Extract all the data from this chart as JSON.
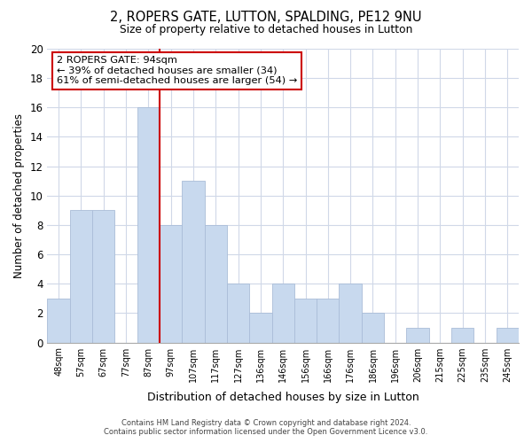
{
  "title": "2, ROPERS GATE, LUTTON, SPALDING, PE12 9NU",
  "subtitle": "Size of property relative to detached houses in Lutton",
  "xlabel": "Distribution of detached houses by size in Lutton",
  "ylabel": "Number of detached properties",
  "bar_labels": [
    "48sqm",
    "57sqm",
    "67sqm",
    "77sqm",
    "87sqm",
    "97sqm",
    "107sqm",
    "117sqm",
    "127sqm",
    "136sqm",
    "146sqm",
    "156sqm",
    "166sqm",
    "176sqm",
    "186sqm",
    "196sqm",
    "206sqm",
    "215sqm",
    "225sqm",
    "235sqm",
    "245sqm"
  ],
  "bar_heights": [
    3,
    9,
    9,
    0,
    16,
    8,
    11,
    8,
    4,
    2,
    4,
    3,
    3,
    4,
    2,
    0,
    1,
    0,
    1,
    0,
    1
  ],
  "bar_color": "#c8d9ee",
  "bar_edge_color": "#aabdd8",
  "red_line_after_index": 4,
  "ylim": [
    0,
    20
  ],
  "yticks": [
    0,
    2,
    4,
    6,
    8,
    10,
    12,
    14,
    16,
    18,
    20
  ],
  "annotation_title": "2 ROPERS GATE: 94sqm",
  "annotation_line1": "← 39% of detached houses are smaller (34)",
  "annotation_line2": "61% of semi-detached houses are larger (54) →",
  "footer_line1": "Contains HM Land Registry data © Crown copyright and database right 2024.",
  "footer_line2": "Contains public sector information licensed under the Open Government Licence v3.0.",
  "bg_color": "#ffffff",
  "grid_color": "#d0d8e8",
  "annotation_box_color": "#ffffff",
  "annotation_box_edge": "#cc0000",
  "red_line_color": "#cc0000"
}
